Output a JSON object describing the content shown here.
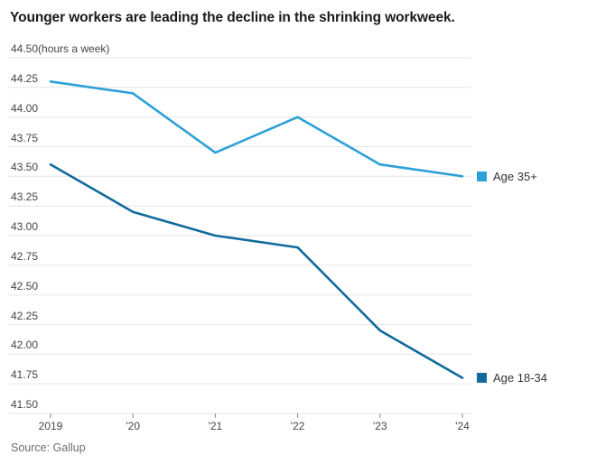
{
  "chart": {
    "title": "Younger workers are leading the decline in the shrinking workweek.",
    "y_top_label": "44.50(hours a week)",
    "source": "Source: Gallup",
    "colors": {
      "series_light_blue": "#2da0d8",
      "series_dark_blue": "#116b9c",
      "gridline": "#e5e5e5",
      "axis_tick": "#8a8a8a",
      "tick_text": "#454545",
      "title_text": "#1a1a1a"
    }
  },
  "chart_data": {
    "type": "line",
    "title": "Younger workers are leading the decline in the shrinking workweek.",
    "units_label": "(hours a week)",
    "y_top_tick_label": "44.50(hours a week)",
    "source": "Source: Gallup",
    "x": [
      2019,
      2020,
      2021,
      2022,
      2023,
      2024
    ],
    "x_tick_labels": [
      "2019",
      "'20",
      "'21",
      "'22",
      "'23",
      "'24"
    ],
    "y_tick_labels": [
      "44.25",
      "44.00",
      "43.75",
      "43.50",
      "43.25",
      "43.00",
      "42.75",
      "42.50",
      "42.25",
      "42.00",
      "41.75",
      "41.50"
    ],
    "ylim": [
      41.5,
      44.5
    ],
    "y_tick_step": 0.25,
    "grid": true,
    "legend_position": "right of line ends",
    "series": [
      {
        "name": "Age 35+",
        "color": "#2da0d8",
        "values": [
          44.3,
          44.2,
          43.7,
          44.0,
          43.6,
          43.5
        ]
      },
      {
        "name": "Age 18-34",
        "color": "#116b9c",
        "values": [
          43.6,
          43.2,
          43.0,
          42.9,
          42.2,
          41.8
        ]
      }
    ]
  }
}
